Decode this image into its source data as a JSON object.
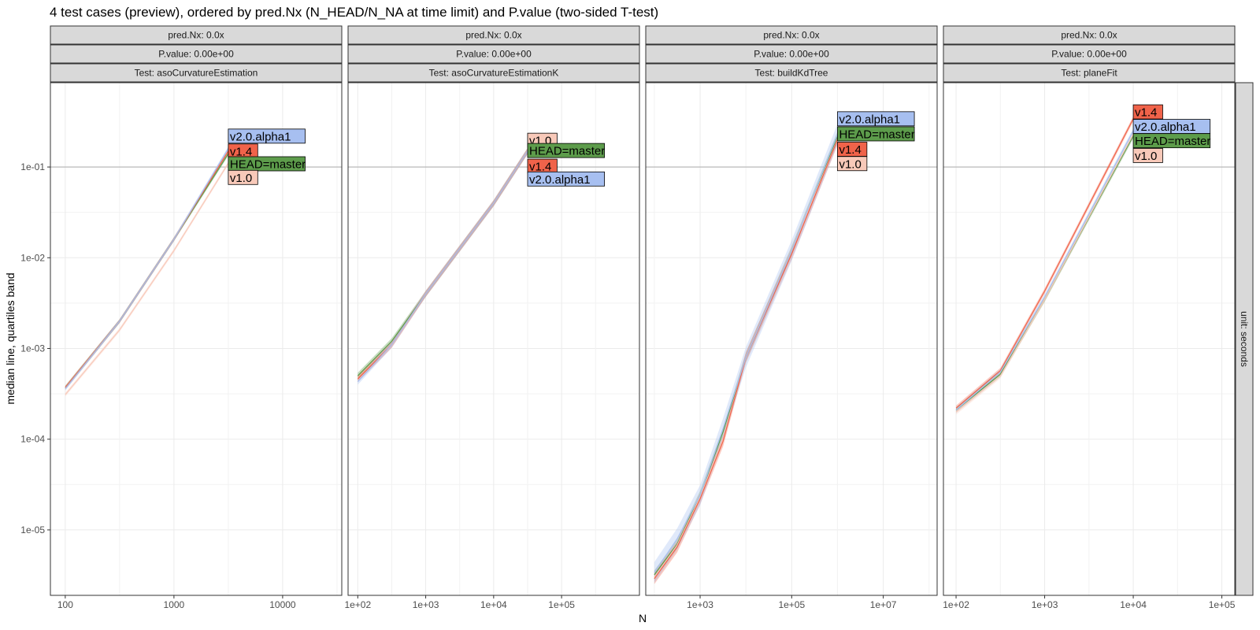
{
  "chart_data": {
    "type": "line",
    "title": "4 test cases (preview), ordered by pred.Nx (N_HEAD/N_NA at time limit) and P.value (two-sided T-test)",
    "xlabel": "N",
    "ylabel": "median line, quartiles band",
    "y_scale": "log10",
    "ylim": [
      1.9e-06,
      0.85
    ],
    "y_ticks": [
      {
        "value": 1e-05,
        "label": "1e-05"
      },
      {
        "value": 0.0001,
        "label": "1e-04"
      },
      {
        "value": 0.001,
        "label": "1e-03"
      },
      {
        "value": 0.01,
        "label": "1e-02"
      },
      {
        "value": 0.1,
        "label": "1e-01"
      }
    ],
    "hline": 0.1,
    "grid": true,
    "right_strip": "unit: seconds",
    "colors": {
      "HEAD=master": "#5d9c4b",
      "v1.0": "#f8c9b9",
      "v1.4": "#f0634a",
      "v2.0.alpha1": "#a7bff0"
    },
    "panels": [
      {
        "strips": [
          "pred.Nx: 0.0x",
          "P.value: 0.00e+00",
          "Test: asoCurvatureEstimation"
        ],
        "x_scale": "log10",
        "xlim": [
          73,
          35000
        ],
        "x_ticks": [
          {
            "value": 100,
            "label": "100"
          },
          {
            "value": 1000,
            "label": "1000"
          },
          {
            "value": 10000,
            "label": "10000"
          }
        ],
        "series": [
          {
            "name": "HEAD=master",
            "x": [
              100,
              316,
              1000,
              3162
            ],
            "y": [
              0.00037,
              0.002,
              0.016,
              0.14
            ],
            "band": 0.05
          },
          {
            "name": "v1.0",
            "x": [
              100,
              316,
              1000,
              3162
            ],
            "y": [
              0.00031,
              0.0016,
              0.012,
              0.11
            ],
            "band": 0.05
          },
          {
            "name": "v1.4",
            "x": [
              100,
              316,
              1000,
              3162
            ],
            "y": [
              0.00037,
              0.002,
              0.016,
              0.15
            ],
            "band": 0.05
          },
          {
            "name": "v2.0.alpha1",
            "x": [
              100,
              316,
              1000,
              3162
            ],
            "y": [
              0.00036,
              0.002,
              0.016,
              0.16
            ],
            "band": 0.05
          }
        ],
        "labels": [
          {
            "name": "v2.0.alpha1",
            "y": 0.219
          },
          {
            "name": "v1.4",
            "y": 0.15
          },
          {
            "name": "HEAD=master",
            "y": 0.1085
          },
          {
            "name": "v1.0",
            "y": 0.0768
          }
        ]
      },
      {
        "strips": [
          "pred.Nx: 0.0x",
          "P.value: 0.00e+00",
          "Test: asoCurvatureEstimationK"
        ],
        "x_scale": "log10",
        "xlim": [
          72,
          1400000
        ],
        "x_ticks": [
          {
            "value": 100,
            "label": "1e+02"
          },
          {
            "value": 1000,
            "label": "1e+03"
          },
          {
            "value": 10000,
            "label": "1e+04"
          },
          {
            "value": 100000,
            "label": "1e+05"
          }
        ],
        "series": [
          {
            "name": "HEAD=master",
            "x": [
              100,
              316,
              1000,
              10000,
              31623
            ],
            "y": [
              0.0005,
              0.0012,
              0.004,
              0.04,
              0.15
            ],
            "band": 0.08
          },
          {
            "name": "v1.0",
            "x": [
              100,
              316,
              1000,
              10000,
              31623
            ],
            "y": [
              0.00046,
              0.0011,
              0.004,
              0.04,
              0.15
            ],
            "band": 0.08
          },
          {
            "name": "v1.4",
            "x": [
              100,
              316,
              1000,
              10000,
              31623
            ],
            "y": [
              0.00046,
              0.0011,
              0.004,
              0.04,
              0.15
            ],
            "band": 0.08
          },
          {
            "name": "v2.0.alpha1",
            "x": [
              100,
              316,
              1000,
              10000,
              31623
            ],
            "y": [
              0.00043,
              0.0011,
              0.004,
              0.04,
              0.15
            ],
            "band": 0.08
          }
        ],
        "labels": [
          {
            "name": "v1.0",
            "y": 0.197
          },
          {
            "name": "HEAD=master",
            "y": 0.152
          },
          {
            "name": "v1.4",
            "y": 0.102
          },
          {
            "name": "v2.0.alpha1",
            "y": 0.0738
          }
        ]
      },
      {
        "strips": [
          "pred.Nx: 0.0x",
          "P.value: 0.00e+00",
          "Test: buildKdTree"
        ],
        "x_scale": "log10",
        "xlim": [
          65,
          150000000.0
        ],
        "x_ticks": [
          {
            "value": 1000,
            "label": "1e+03"
          },
          {
            "value": 100000,
            "label": "1e+05"
          },
          {
            "value": 10000000,
            "label": "1e+07"
          }
        ],
        "series": [
          {
            "name": "HEAD=master",
            "x": [
              100,
              316,
              1000,
              3162,
              10000,
              100000,
              1000000
            ],
            "y": [
              3.2e-06,
              7e-06,
              2.4e-05,
              0.00012,
              0.0008,
              0.012,
              0.22
            ],
            "band": 0.12
          },
          {
            "name": "v1.0",
            "x": [
              100,
              316,
              1000,
              3162,
              10000,
              100000,
              1000000
            ],
            "y": [
              3e-06,
              6.8e-06,
              2.3e-05,
              0.0001,
              0.0008,
              0.012,
              0.2
            ],
            "band": 0.12
          },
          {
            "name": "v1.4",
            "x": [
              100,
              316,
              1000,
              3162,
              10000,
              100000,
              1000000
            ],
            "y": [
              2.9e-06,
              6.5e-06,
              2.2e-05,
              9.5e-05,
              0.0008,
              0.011,
              0.2
            ],
            "band": 0.15
          },
          {
            "name": "v2.0.alpha1",
            "x": [
              100,
              316,
              1000,
              3162,
              10000,
              100000,
              1000000
            ],
            "y": [
              3.4e-06,
              8e-06,
              2.4e-05,
              0.00013,
              0.0008,
              0.012,
              0.23
            ],
            "band": 0.3
          }
        ],
        "labels": [
          {
            "name": "v2.0.alpha1",
            "y": 0.34
          },
          {
            "name": "HEAD=master",
            "y": 0.232
          },
          {
            "name": "v1.4",
            "y": 0.157
          },
          {
            "name": "v1.0",
            "y": 0.109
          }
        ]
      },
      {
        "strips": [
          "pred.Nx: 0.0x",
          "P.value: 0.00e+00",
          "Test: planeFit"
        ],
        "x_scale": "log10",
        "xlim": [
          72,
          140000
        ],
        "x_ticks": [
          {
            "value": 100,
            "label": "1e+02"
          },
          {
            "value": 1000,
            "label": "1e+03"
          },
          {
            "value": 10000,
            "label": "1e+04"
          },
          {
            "value": 100000,
            "label": "1e+05"
          }
        ],
        "series": [
          {
            "name": "HEAD=master",
            "x": [
              100,
              316,
              1000,
              10000
            ],
            "y": [
              0.00021,
              0.00052,
              0.0035,
              0.22
            ],
            "band": 0.07
          },
          {
            "name": "v1.0",
            "x": [
              100,
              316,
              1000,
              10000
            ],
            "y": [
              0.0002,
              0.0005,
              0.0035,
              0.23
            ],
            "band": 0.07
          },
          {
            "name": "v1.4",
            "x": [
              100,
              316,
              1000,
              10000
            ],
            "y": [
              0.00022,
              0.00057,
              0.0043,
              0.34
            ],
            "band": 0.07
          },
          {
            "name": "v2.0.alpha1",
            "x": [
              100,
              316,
              1000,
              10000
            ],
            "y": [
              0.00021,
              0.00055,
              0.0037,
              0.25
            ],
            "band": 0.07
          }
        ],
        "labels": [
          {
            "name": "v1.4",
            "y": 0.405
          },
          {
            "name": "v2.0.alpha1",
            "y": 0.28
          },
          {
            "name": "HEAD=master",
            "y": 0.195
          },
          {
            "name": "v1.0",
            "y": 0.134
          }
        ]
      }
    ]
  }
}
